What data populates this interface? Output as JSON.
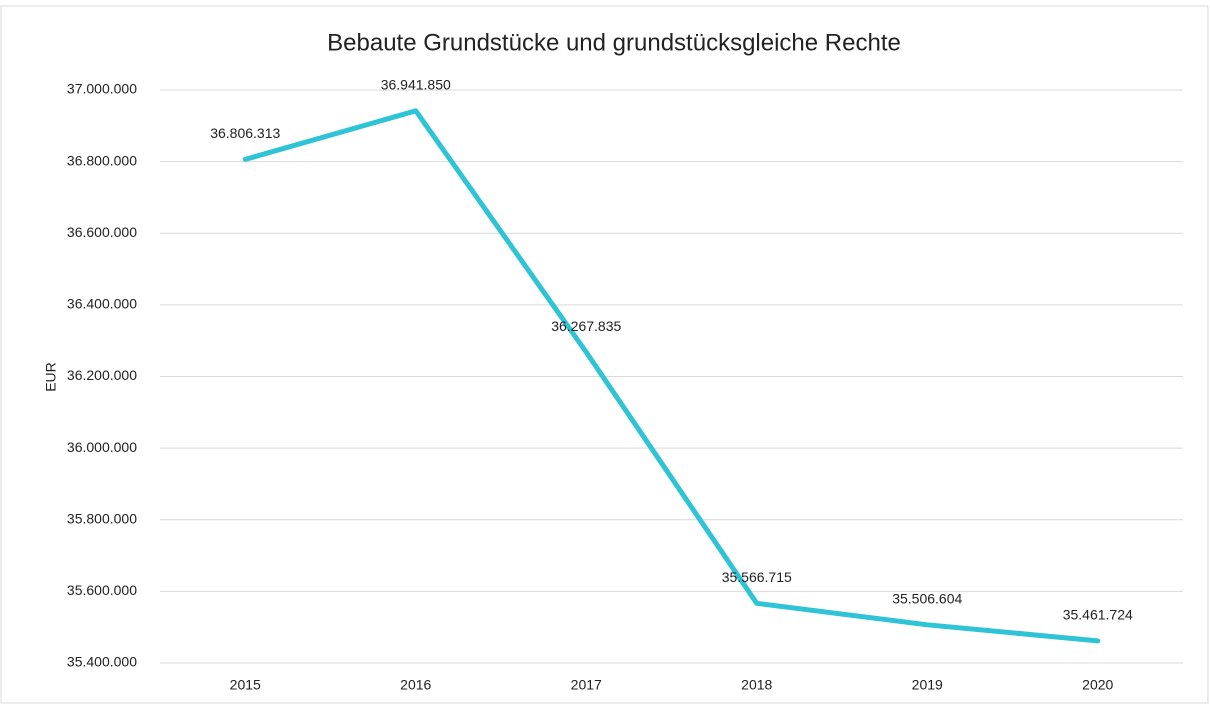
{
  "chart_data": {
    "type": "line",
    "title": "Bebaute Grundstücke und grundstücksgleiche Rechte",
    "y_label": "EUR",
    "categories": [
      "2015",
      "2016",
      "2017",
      "2018",
      "2019",
      "2020"
    ],
    "series": [
      {
        "name": "Bebaute Grundstücke und grundstücksgleiche Rechte",
        "color": "#2ec4d6",
        "values": [
          36806313,
          36941850,
          36267835,
          35566715,
          35506604,
          35461724
        ],
        "value_labels": [
          "36.806.313",
          "36.941.850",
          "36.267.835",
          "35.566.715",
          "35.506.604",
          "35.461.724"
        ]
      }
    ],
    "ylim": [
      35400000,
      37000000
    ],
    "yticks": [
      {
        "value": 35400000,
        "label": "35.400.000"
      },
      {
        "value": 35600000,
        "label": "35.600.000"
      },
      {
        "value": 35800000,
        "label": "35.800.000"
      },
      {
        "value": 36000000,
        "label": "36.000.000"
      },
      {
        "value": 36200000,
        "label": "36.200.000"
      },
      {
        "value": 36400000,
        "label": "36.400.000"
      },
      {
        "value": 36600000,
        "label": "36.600.000"
      },
      {
        "value": 36800000,
        "label": "36.800.000"
      },
      {
        "value": 37000000,
        "label": "37.000.000"
      }
    ],
    "grid": true
  }
}
